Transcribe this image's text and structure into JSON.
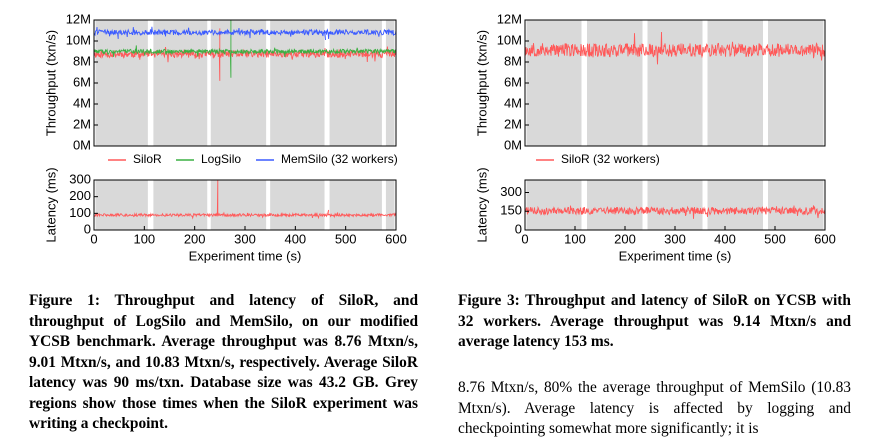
{
  "figure1": {
    "caption": "Figure 1: Throughput and latency of SiloR, and throughput of LogSilo and MemSilo, on our modified YCSB benchmark. Average throughput was 8.76 Mtxn/s, 9.01 Mtxn/s, and 10.83 Mtxn/s, respectively. Average SiloR latency was 90 ms/txn. Database size was 43.2 GB. Grey regions show those times when the SiloR experiment was writing a checkpoint.",
    "chart_data": [
      {
        "type": "line",
        "panel": "throughput",
        "ylabel": "Throughput (txn/s)",
        "xlabel": "",
        "xlim": [
          0,
          600
        ],
        "ylim": [
          0,
          12000000
        ],
        "yticks": [
          "0M",
          "2M",
          "4M",
          "6M",
          "8M",
          "10M",
          "12M"
        ],
        "checkpoint_regions": [
          [
            3,
            107
          ],
          [
            118,
            225
          ],
          [
            232,
            342
          ],
          [
            350,
            458
          ],
          [
            468,
            572
          ],
          [
            580,
            597
          ]
        ],
        "series": [
          {
            "name": "SiloR",
            "color": "#ff5a5a",
            "mean": 8760000,
            "noise": 350000,
            "spikes": [
              {
                "x": 250,
                "y": 11200000
              },
              {
                "x": 250,
                "y": 6200000
              }
            ]
          },
          {
            "name": "LogSilo",
            "color": "#3cb043",
            "mean": 9010000,
            "noise": 200000,
            "spikes": [
              {
                "x": 272,
                "y": 12000000
              },
              {
                "x": 272,
                "y": 6500000
              }
            ]
          },
          {
            "name": "MemSilo (32 workers)",
            "color": "#3b5bff",
            "mean": 10830000,
            "noise": 250000,
            "spikes": [
              {
                "x": 48,
                "y": 10200000
              },
              {
                "x": 460,
                "y": 10100000
              }
            ]
          }
        ],
        "legend": [
          "SiloR",
          "LogSilo",
          "MemSilo (32 workers)"
        ],
        "legend_placement": "bottom"
      },
      {
        "type": "line",
        "panel": "latency",
        "ylabel": "Latency (ms)",
        "xlabel": "Experiment time (s)",
        "xlim": [
          0,
          600
        ],
        "ylim": [
          0,
          300
        ],
        "yticks": [
          "0",
          "100",
          "200",
          "300"
        ],
        "xticks": [
          "0",
          "100",
          "200",
          "300",
          "400",
          "500",
          "600"
        ],
        "checkpoint_regions": [
          [
            3,
            107
          ],
          [
            118,
            225
          ],
          [
            232,
            342
          ],
          [
            350,
            458
          ],
          [
            468,
            572
          ],
          [
            580,
            597
          ]
        ],
        "series": [
          {
            "name": "SiloR",
            "color": "#ff5a5a",
            "mean": 90,
            "noise": 8,
            "spikes": [
              {
                "x": 246,
                "y": 300
              },
              {
                "x": 466,
                "y": 120
              }
            ]
          }
        ]
      }
    ]
  },
  "figure3": {
    "caption": "Figure 3: Throughput and latency of SiloR on YCSB with 32 workers. Average throughput was 9.14 Mtxn/s and average latency 153 ms.",
    "chart_data": [
      {
        "type": "line",
        "panel": "throughput",
        "ylabel": "Throughput (txn/s)",
        "xlabel": "",
        "xlim": [
          0,
          600
        ],
        "ylim": [
          0,
          12000000
        ],
        "yticks": [
          "0M",
          "2M",
          "4M",
          "6M",
          "8M",
          "10M",
          "12M"
        ],
        "checkpoint_regions": [
          [
            3,
            113
          ],
          [
            124,
            235
          ],
          [
            245,
            355
          ],
          [
            365,
            476
          ],
          [
            486,
            597
          ]
        ],
        "series": [
          {
            "name": "SiloR (32 workers)",
            "color": "#ff5a5a",
            "mean": 9140000,
            "noise": 650000,
            "spikes": []
          }
        ],
        "legend": [
          "SiloR (32 workers)"
        ],
        "legend_placement": "bottom"
      },
      {
        "type": "line",
        "panel": "latency",
        "ylabel": "Latency (ms)",
        "xlabel": "Experiment time (s)",
        "xlim": [
          0,
          600
        ],
        "ylim": [
          0,
          400
        ],
        "yticks": [
          "0",
          "150",
          "300"
        ],
        "xticks": [
          "0",
          "100",
          "200",
          "300",
          "400",
          "500",
          "600"
        ],
        "checkpoint_regions": [
          [
            3,
            113
          ],
          [
            124,
            235
          ],
          [
            245,
            355
          ],
          [
            365,
            476
          ],
          [
            486,
            597
          ]
        ],
        "series": [
          {
            "name": "SiloR (32 workers)",
            "color": "#ff5a5a",
            "mean": 153,
            "noise": 30,
            "spikes": []
          }
        ]
      }
    ]
  },
  "body_text": "8.76 Mtxn/s, 80% the average throughput of MemSilo (10.83 Mtxn/s). Average latency is affected by logging and checkpointing somewhat more significantly; it is"
}
